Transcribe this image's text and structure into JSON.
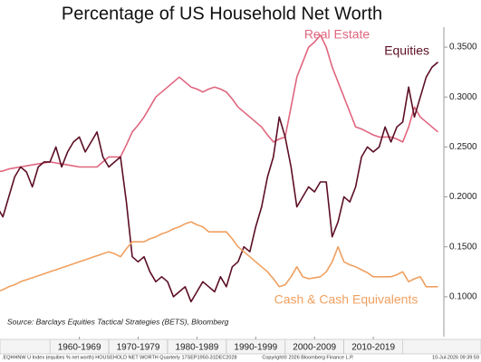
{
  "chart_data": {
    "type": "line",
    "title": "Percentage of US Household Net Worth",
    "source": "Source: Barclays Equities Tactical Strategies (BETS), Bloomberg",
    "footer": {
      "left": ".EQHHNW U Index (equities % net worth)  HOUSEHOLD NET WORTH Quarterly 17SEP1950-31DEC2028",
      "center": "Copyright© 2026 Bloomberg Finance L.P.",
      "right": "10-Jul-2026 09:39:59"
    },
    "x": [
      1951,
      1952,
      1953,
      1954,
      1955,
      1956,
      1957,
      1958,
      1959,
      1960,
      1961,
      1962,
      1963,
      1964,
      1965,
      1966,
      1967,
      1968,
      1969,
      1970,
      1971,
      1972,
      1973,
      1974,
      1975,
      1976,
      1977,
      1978,
      1979,
      1980,
      1981,
      1982,
      1983,
      1984,
      1985,
      1986,
      1987,
      1988,
      1989,
      1990,
      1991,
      1992,
      1993,
      1994,
      1995,
      1996,
      1997,
      1998,
      1999,
      2000,
      2001,
      2002,
      2003,
      2004,
      2005,
      2006,
      2007,
      2008,
      2009,
      2010,
      2011,
      2012,
      2013,
      2014,
      2015,
      2016,
      2017,
      2018,
      2019,
      2020,
      2021,
      2022,
      2023,
      2024,
      2025,
      2026
    ],
    "series": [
      {
        "name": "Real Estate",
        "color": "#e0667f",
        "values": [
          0.225,
          0.226,
          0.228,
          0.229,
          0.23,
          0.231,
          0.232,
          0.233,
          0.234,
          0.235,
          0.234,
          0.233,
          0.232,
          0.231,
          0.23,
          0.23,
          0.23,
          0.23,
          0.235,
          0.24,
          0.24,
          0.24,
          0.252,
          0.265,
          0.272,
          0.28,
          0.29,
          0.3,
          0.305,
          0.31,
          0.315,
          0.32,
          0.315,
          0.31,
          0.308,
          0.305,
          0.308,
          0.31,
          0.308,
          0.305,
          0.298,
          0.29,
          0.285,
          0.28,
          0.275,
          0.27,
          0.262,
          0.255,
          0.258,
          0.26,
          0.29,
          0.32,
          0.335,
          0.35,
          0.355,
          0.362,
          0.35,
          0.33,
          0.315,
          0.3,
          0.285,
          0.27,
          0.268,
          0.265,
          0.262,
          0.26,
          0.26,
          0.26,
          0.258,
          0.255,
          0.27,
          0.29,
          0.28,
          0.275,
          0.27,
          0.265
        ]
      },
      {
        "name": "Equities",
        "color": "#5c0f24",
        "values": [
          0.19,
          0.18,
          0.2,
          0.22,
          0.23,
          0.225,
          0.21,
          0.23,
          0.235,
          0.235,
          0.25,
          0.23,
          0.245,
          0.255,
          0.26,
          0.245,
          0.255,
          0.265,
          0.24,
          0.23,
          0.235,
          0.24,
          0.195,
          0.14,
          0.135,
          0.14,
          0.125,
          0.115,
          0.12,
          0.115,
          0.1,
          0.105,
          0.11,
          0.095,
          0.105,
          0.115,
          0.11,
          0.105,
          0.12,
          0.11,
          0.13,
          0.135,
          0.15,
          0.145,
          0.17,
          0.19,
          0.22,
          0.24,
          0.28,
          0.26,
          0.23,
          0.19,
          0.2,
          0.21,
          0.205,
          0.215,
          0.215,
          0.16,
          0.175,
          0.2,
          0.195,
          0.21,
          0.24,
          0.25,
          0.245,
          0.25,
          0.27,
          0.255,
          0.27,
          0.275,
          0.31,
          0.28,
          0.3,
          0.32,
          0.33,
          0.335
        ]
      },
      {
        "name": "Cash & Cash Equivalents",
        "color": "#f0a060",
        "values": [
          0.105,
          0.107,
          0.11,
          0.112,
          0.115,
          0.117,
          0.119,
          0.121,
          0.123,
          0.125,
          0.127,
          0.129,
          0.131,
          0.133,
          0.135,
          0.137,
          0.139,
          0.141,
          0.143,
          0.145,
          0.143,
          0.14,
          0.148,
          0.155,
          0.155,
          0.155,
          0.158,
          0.16,
          0.163,
          0.165,
          0.168,
          0.17,
          0.173,
          0.175,
          0.172,
          0.17,
          0.165,
          0.165,
          0.165,
          0.165,
          0.158,
          0.15,
          0.145,
          0.14,
          0.135,
          0.13,
          0.125,
          0.118,
          0.11,
          0.112,
          0.12,
          0.13,
          0.12,
          0.118,
          0.119,
          0.12,
          0.125,
          0.135,
          0.15,
          0.135,
          0.132,
          0.13,
          0.127,
          0.124,
          0.12,
          0.12,
          0.12,
          0.12,
          0.122,
          0.125,
          0.115,
          0.118,
          0.12,
          0.11,
          0.11,
          0.11
        ]
      }
    ],
    "xlim": [
      1951.5,
      2027
    ],
    "xticks": [
      {
        "value": 1965,
        "label": "1960-1969"
      },
      {
        "value": 1975,
        "label": "1970-1979"
      },
      {
        "value": 1985,
        "label": "1980-1989"
      },
      {
        "value": 1995,
        "label": "1990-1999"
      },
      {
        "value": 2005,
        "label": "2000-2009"
      },
      {
        "value": 2015,
        "label": "2010-2019"
      }
    ],
    "ylim": [
      0.06,
      0.37
    ],
    "yticks": [
      {
        "value": 0.1,
        "label": "0.1000"
      },
      {
        "value": 0.15,
        "label": "0.1500"
      },
      {
        "value": 0.2,
        "label": "0.2000"
      },
      {
        "value": 0.25,
        "label": "0.2500"
      },
      {
        "value": 0.3,
        "label": "0.3000"
      },
      {
        "value": 0.35,
        "label": "0.3500"
      }
    ]
  }
}
